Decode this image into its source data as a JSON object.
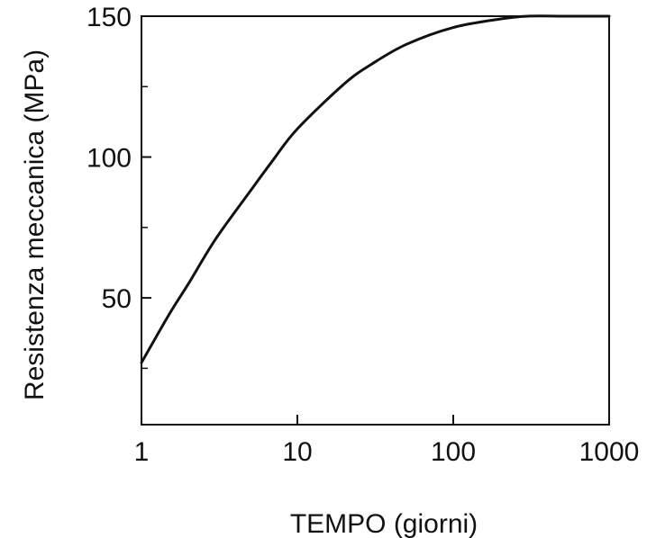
{
  "chart_data": {
    "type": "line",
    "title": "",
    "xlabel": "TEMPO (giorni)",
    "ylabel": "Resistenza meccanica (MPa)",
    "xscale": "log",
    "xlim": [
      1,
      1000
    ],
    "ylim": [
      5,
      150
    ],
    "grid": false,
    "legend": "none",
    "x_ticks": [
      {
        "value": 1,
        "label": "1"
      },
      {
        "value": 10,
        "label": "10"
      },
      {
        "value": 100,
        "label": "100"
      },
      {
        "value": 1000,
        "label": "1000"
      }
    ],
    "y_ticks": [
      {
        "value": 50,
        "label": "50"
      },
      {
        "value": 100,
        "label": "100"
      },
      {
        "value": 150,
        "label": "150"
      }
    ],
    "y_minor_ticks": [
      25,
      75,
      125
    ],
    "series": [
      {
        "color": "#111111",
        "x": [
          1,
          1.5,
          2,
          3,
          5,
          7,
          10,
          20,
          30,
          50,
          100,
          200,
          300,
          500,
          700,
          1000
        ],
        "y": [
          27,
          44,
          55,
          71,
          88,
          99,
          110,
          126,
          133,
          140,
          146,
          149,
          150,
          150,
          150,
          150
        ]
      }
    ]
  }
}
